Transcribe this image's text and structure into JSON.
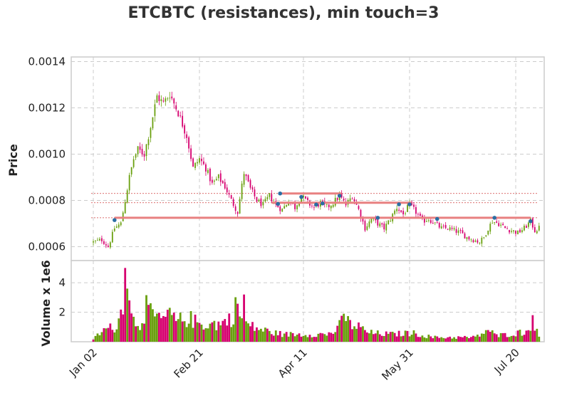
{
  "chart_data": {
    "type": "candlestick",
    "title": "ETCBTC (resistances), min touch=3",
    "ylabel_price": "Price",
    "ylabel_volume": "Volume x 1e6",
    "price_ylim": [
      0.00054,
      0.00142
    ],
    "volume_ylim": [
      0,
      5.5
    ],
    "price_ticks": [
      0.0006,
      0.0008,
      0.001,
      0.0012,
      0.0014
    ],
    "price_tick_labels": [
      "0.0006",
      "0.0008",
      "0.0010",
      "0.0012",
      "0.0014"
    ],
    "volume_ticks": [
      2,
      4
    ],
    "volume_tick_labels": [
      "2",
      "4"
    ],
    "x_ticks": [
      {
        "index": 0,
        "label": "Jan 02"
      },
      {
        "index": 50,
        "label": "Feb 21"
      },
      {
        "index": 99,
        "label": "Apr 11"
      },
      {
        "index": 149,
        "label": "May 31"
      },
      {
        "index": 199,
        "label": "Jul 20"
      }
    ],
    "up_color": "#6aa00f",
    "down_color": "#d6006f",
    "resistance_color": "#e88080",
    "touch_marker_color": "#2b6ea3",
    "grid": true,
    "close_anchors": [
      [
        0,
        0.00062
      ],
      [
        4,
        0.00063
      ],
      [
        7,
        0.0006
      ],
      [
        10,
        0.00068
      ],
      [
        13,
        0.0007
      ],
      [
        15,
        0.0008
      ],
      [
        17,
        0.0009
      ],
      [
        19,
        0.00098
      ],
      [
        21,
        0.00102
      ],
      [
        24,
        0.001
      ],
      [
        27,
        0.00112
      ],
      [
        30,
        0.00125
      ],
      [
        33,
        0.00122
      ],
      [
        36,
        0.00126
      ],
      [
        40,
        0.00118
      ],
      [
        44,
        0.00108
      ],
      [
        47,
        0.00094
      ],
      [
        50,
        0.00098
      ],
      [
        53,
        0.00094
      ],
      [
        56,
        0.00087
      ],
      [
        59,
        0.0009
      ],
      [
        62,
        0.00086
      ],
      [
        65,
        0.0008
      ],
      [
        68,
        0.00075
      ],
      [
        71,
        0.00092
      ],
      [
        74,
        0.00085
      ],
      [
        77,
        0.0008
      ],
      [
        80,
        0.00078
      ],
      [
        83,
        0.00082
      ],
      [
        86,
        0.00078
      ],
      [
        89,
        0.00076
      ],
      [
        92,
        0.0008
      ],
      [
        95,
        0.00077
      ],
      [
        98,
        0.00082
      ],
      [
        101,
        0.00079
      ],
      [
        104,
        0.00077
      ],
      [
        107,
        0.00079
      ],
      [
        110,
        0.00077
      ],
      [
        113,
        0.00079
      ],
      [
        116,
        0.00082
      ],
      [
        119,
        0.00078
      ],
      [
        122,
        0.00082
      ],
      [
        125,
        0.00076
      ],
      [
        128,
        0.00068
      ],
      [
        131,
        0.00072
      ],
      [
        134,
        0.0007
      ],
      [
        137,
        0.00068
      ],
      [
        140,
        0.00072
      ],
      [
        143,
        0.00077
      ],
      [
        146,
        0.00074
      ],
      [
        149,
        0.00078
      ],
      [
        152,
        0.00075
      ],
      [
        155,
        0.00071
      ],
      [
        158,
        0.00072
      ],
      [
        161,
        0.0007
      ],
      [
        164,
        0.00068
      ],
      [
        167,
        0.00068
      ],
      [
        170,
        0.00067
      ],
      [
        173,
        0.00066
      ],
      [
        176,
        0.00064
      ],
      [
        179,
        0.00063
      ],
      [
        182,
        0.00062
      ],
      [
        184,
        0.00064
      ],
      [
        186,
        0.00068
      ],
      [
        188,
        0.00071
      ],
      [
        191,
        0.0007
      ],
      [
        194,
        0.00068
      ],
      [
        197,
        0.00067
      ],
      [
        200,
        0.00066
      ],
      [
        203,
        0.00068
      ],
      [
        206,
        0.00071
      ],
      [
        208,
        0.00067
      ],
      [
        210,
        0.00068
      ]
    ],
    "volume_anchors": [
      [
        0,
        0.2
      ],
      [
        5,
        0.8
      ],
      [
        10,
        1.0
      ],
      [
        12,
        1.4
      ],
      [
        13,
        2.0
      ],
      [
        14,
        3.0
      ],
      [
        15,
        4.8
      ],
      [
        16,
        3.2
      ],
      [
        18,
        1.6
      ],
      [
        22,
        1.2
      ],
      [
        25,
        2.4
      ],
      [
        28,
        1.6
      ],
      [
        32,
        1.6
      ],
      [
        36,
        1.6
      ],
      [
        40,
        1.4
      ],
      [
        45,
        1.6
      ],
      [
        50,
        1.2
      ],
      [
        55,
        1.2
      ],
      [
        60,
        1.2
      ],
      [
        65,
        1.6
      ],
      [
        68,
        2.6
      ],
      [
        70,
        1.4
      ],
      [
        75,
        1.0
      ],
      [
        80,
        0.8
      ],
      [
        85,
        0.6
      ],
      [
        90,
        0.5
      ],
      [
        95,
        0.5
      ],
      [
        100,
        0.5
      ],
      [
        110,
        0.5
      ],
      [
        115,
        0.8
      ],
      [
        118,
        1.6
      ],
      [
        121,
        1.2
      ],
      [
        125,
        1.0
      ],
      [
        130,
        0.6
      ],
      [
        140,
        0.5
      ],
      [
        150,
        0.6
      ],
      [
        160,
        0.3
      ],
      [
        170,
        0.3
      ],
      [
        180,
        0.3
      ],
      [
        186,
        0.8
      ],
      [
        190,
        0.4
      ],
      [
        195,
        0.5
      ],
      [
        200,
        0.6
      ],
      [
        205,
        0.7
      ],
      [
        207,
        1.6
      ],
      [
        208,
        1.0
      ],
      [
        210,
        0.3
      ]
    ],
    "volume_spikes": [
      {
        "index": 15,
        "value": 5.0
      },
      {
        "index": 16,
        "value": 3.6
      },
      {
        "index": 17,
        "value": 2.8
      },
      {
        "index": 26,
        "value": 2.5
      },
      {
        "index": 36,
        "value": 2.3
      },
      {
        "index": 71,
        "value": 3.2
      },
      {
        "index": 118,
        "value": 1.9
      },
      {
        "index": 207,
        "value": 1.8
      }
    ],
    "resistance_lines": [
      {
        "level": 0.00083,
        "start_index": 88,
        "end_index": 117
      },
      {
        "level": 0.00079,
        "start_index": 84,
        "end_index": 150
      },
      {
        "level": 0.000725,
        "start_index": 10,
        "end_index": 206
      }
    ],
    "resistance_guides": [
      0.00083,
      0.00079,
      0.000725
    ],
    "touch_points": [
      {
        "index": 10,
        "price": 0.000715
      },
      {
        "index": 87,
        "price": 0.000785
      },
      {
        "index": 88,
        "price": 0.00083
      },
      {
        "index": 98,
        "price": 0.000815
      },
      {
        "index": 105,
        "price": 0.000782
      },
      {
        "index": 108,
        "price": 0.000787
      },
      {
        "index": 116,
        "price": 0.00082
      },
      {
        "index": 134,
        "price": 0.000725
      },
      {
        "index": 144,
        "price": 0.000783
      },
      {
        "index": 149,
        "price": 0.000783
      },
      {
        "index": 162,
        "price": 0.00072
      },
      {
        "index": 189,
        "price": 0.000725
      },
      {
        "index": 206,
        "price": 0.00071
      }
    ]
  }
}
